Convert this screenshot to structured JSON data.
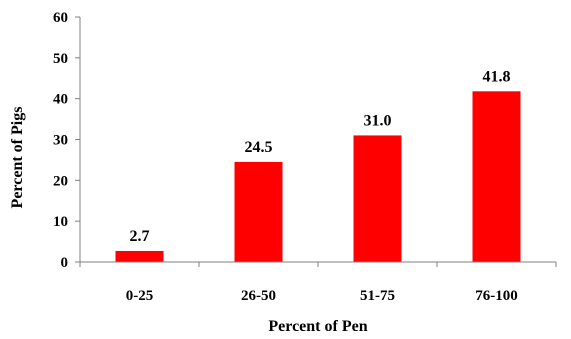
{
  "chart_data": {
    "type": "bar",
    "categories": [
      "0-25",
      "26-50",
      "51-75",
      "76-100"
    ],
    "values": [
      2.7,
      24.5,
      31.0,
      41.8
    ],
    "data_labels": [
      "2.7",
      "24.5",
      "31.0",
      "41.8"
    ],
    "title": "",
    "xlabel": "Percent of Pen",
    "ylabel": "Percent of Pigs",
    "ylim": [
      0,
      60
    ],
    "yticks": [
      0,
      10,
      20,
      30,
      40,
      50,
      60
    ],
    "grid": false,
    "legend": "none",
    "bar_color": "#ff0000"
  }
}
